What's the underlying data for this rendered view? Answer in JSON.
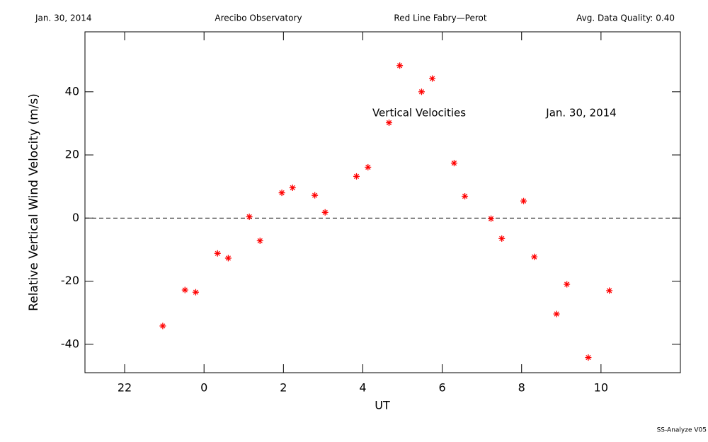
{
  "chart_data": {
    "type": "scatter",
    "header": [
      "Jan. 30, 2014",
      "Arecibo Observatory",
      "Red Line Fabry—Perot",
      "Avg. Data Quality: 0.40"
    ],
    "annotations": [
      "Vertical Velocities",
      "Jan. 30, 2014"
    ],
    "footer": "SS-Analyze V05",
    "xlabel": "UT",
    "ylabel": "Relative Vertical Wind Velocity (m/s)",
    "xlim": [
      -3,
      12
    ],
    "ylim": [
      -49,
      59
    ],
    "xticks": [
      {
        "value": -2,
        "label": "22"
      },
      0,
      2,
      4,
      6,
      8,
      10
    ],
    "yticks": [
      -40,
      -20,
      0,
      20,
      40
    ],
    "reference_line": 0,
    "color": "#ff0000",
    "x": [
      -1.04,
      -0.48,
      -0.21,
      0.34,
      0.61,
      1.14,
      1.41,
      1.96,
      2.23,
      2.79,
      3.05,
      3.84,
      4.13,
      4.66,
      4.93,
      5.48,
      5.75,
      6.3,
      6.57,
      7.23,
      7.5,
      8.05,
      8.32,
      8.88,
      9.14,
      9.68,
      10.21
    ],
    "values": [
      -34.2,
      -22.8,
      -23.5,
      -11.2,
      -12.7,
      0.4,
      -7.2,
      8.0,
      9.6,
      7.2,
      1.8,
      13.2,
      16.1,
      30.2,
      48.3,
      40.0,
      44.2,
      17.4,
      6.9,
      -0.2,
      -6.5,
      5.4,
      -12.3,
      -30.4,
      -21.0,
      -44.2,
      -23.0
    ]
  }
}
